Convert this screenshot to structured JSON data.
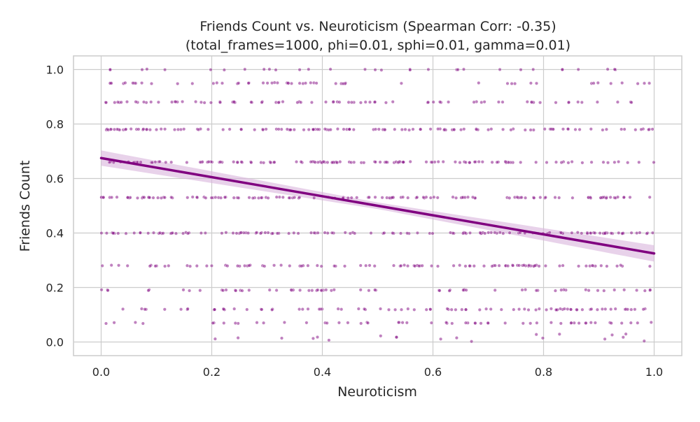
{
  "chart_data": {
    "type": "scatter",
    "title": "Friends Count vs. Neuroticism (Spearman Corr: -0.35)",
    "subtitle": "(total_frames=1000, phi=0.01, sphi=0.01, gamma=0.01)",
    "xlabel": "Neuroticism",
    "ylabel": "Friends Count",
    "xlim": [
      -0.05,
      1.05
    ],
    "ylim": [
      -0.05,
      1.05
    ],
    "x_ticks": [
      "0.0",
      "0.2",
      "0.4",
      "0.6",
      "0.8",
      "1.0"
    ],
    "y_ticks": [
      "0.0",
      "0.2",
      "0.4",
      "0.6",
      "0.8",
      "1.0"
    ],
    "grid": true,
    "levels": [
      0.0,
      0.07,
      0.12,
      0.19,
      0.28,
      0.4,
      0.53,
      0.66,
      0.78,
      0.88,
      0.95,
      1.0
    ],
    "level_weights": [
      1.2,
      4,
      6,
      4,
      7,
      9,
      10,
      9,
      8,
      6,
      3,
      1.5
    ],
    "level_slope": [
      0.9,
      0.5,
      0.25,
      0.2,
      0.05,
      0.0,
      -0.05,
      -0.1,
      -0.2,
      -0.3,
      -0.3,
      -0.3
    ],
    "point_count": 1000,
    "regression": {
      "intercept": 0.675,
      "slope": -0.35,
      "x_range": [
        0.0,
        1.0
      ],
      "ci_halfwidth": [
        0.028,
        0.012,
        0.03
      ]
    },
    "colors": {
      "points": "#8b1a8b",
      "line": "#800080",
      "band": "#d8b4dc",
      "grid": "#cccccc",
      "frame": "#cccccc"
    }
  }
}
